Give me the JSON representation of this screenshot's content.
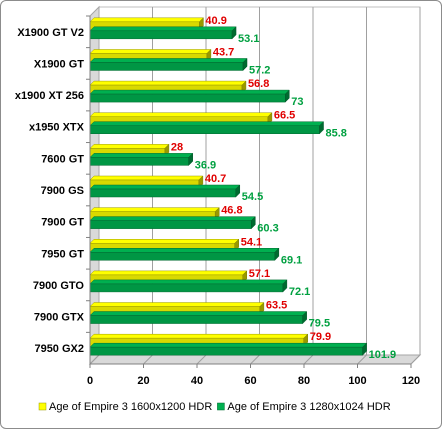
{
  "chart_data": {
    "type": "bar",
    "orientation": "horizontal",
    "categories": [
      "X1900 GT V2",
      "X1900 GT",
      "x1900 XT 256",
      "x1950 XTX",
      "7600 GT",
      "7900 GS",
      "7900 GT",
      "7950 GT",
      "7900 GTO",
      "7900 GTX",
      "7950 GX2"
    ],
    "series": [
      {
        "name": "Age of Empire 3 1600x1200 HDR",
        "color": "#ffff00",
        "label_color": "#e00000",
        "values": [
          40.9,
          43.7,
          56.8,
          66.5,
          28,
          40.7,
          46.8,
          54.1,
          57.1,
          63.5,
          79.9
        ]
      },
      {
        "name": "Age of Empire 3 1280x1024 HDR",
        "color": "#00b050",
        "label_color": "#00a040",
        "values": [
          53.1,
          57.2,
          73,
          85.8,
          36.9,
          54.5,
          60.3,
          69.1,
          72.1,
          79.5,
          101.9
        ]
      }
    ],
    "xlim": [
      0,
      120
    ],
    "xticks": [
      0,
      20,
      40,
      60,
      80,
      100,
      120
    ],
    "grid": true,
    "legend_position": "bottom",
    "title": "",
    "xlabel": "",
    "ylabel": ""
  }
}
